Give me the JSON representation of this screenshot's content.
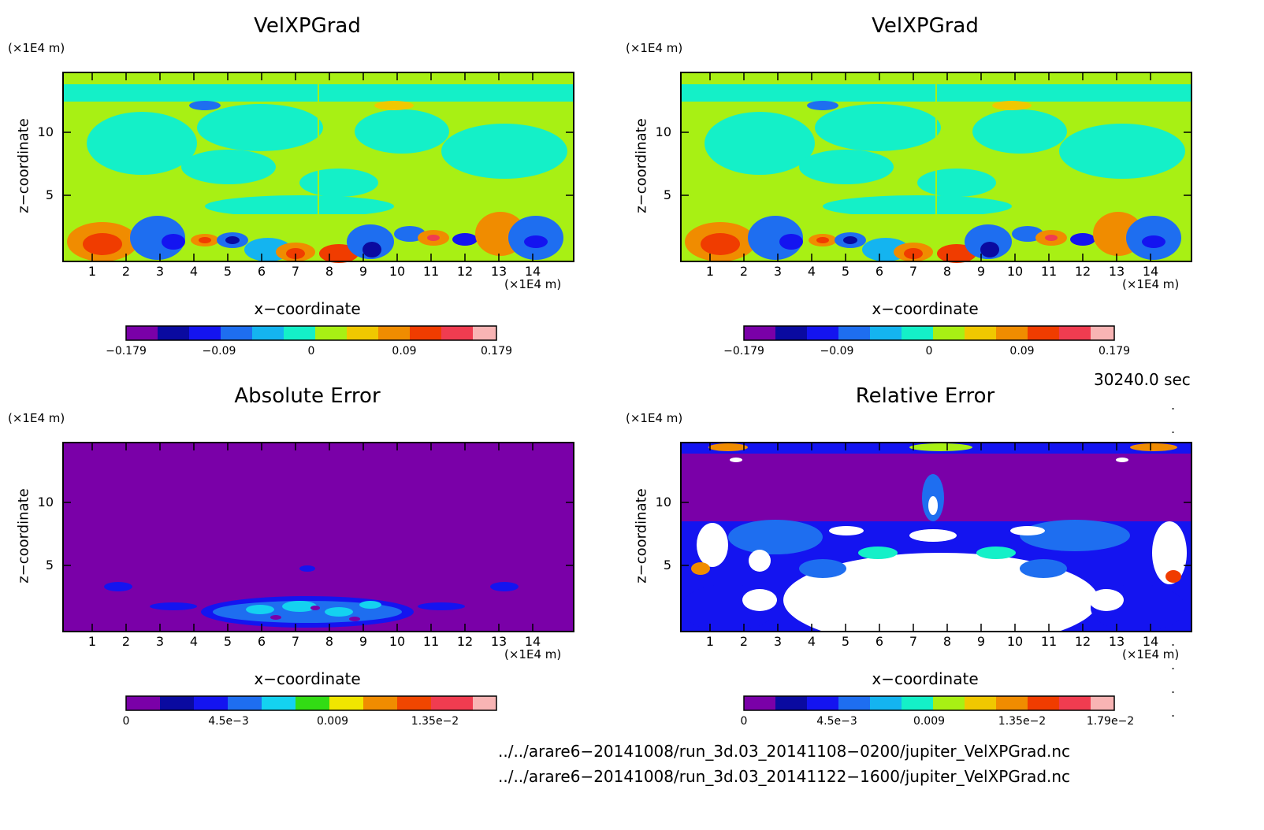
{
  "chart_data": [
    {
      "type": "heatmap",
      "title": "VelXPGrad",
      "xlabel": "x−coordinate",
      "ylabel": "z−coordinate",
      "x_unit": "(×1E4 m)",
      "y_unit": "(×1E4 m)",
      "xticks": [
        "1",
        "2",
        "3",
        "4",
        "5",
        "6",
        "7",
        "8",
        "9",
        "10",
        "11",
        "12",
        "13",
        "14"
      ],
      "yticks": [
        "5",
        "10"
      ],
      "xlim": [
        0,
        15
      ],
      "ylim": [
        0,
        15
      ],
      "colorbar": {
        "labels": [
          "−0.179",
          "−0.09",
          "0",
          "0.09",
          "0.179"
        ],
        "colors": [
          "#7a00a8",
          "#0a0aa0",
          "#1414f0",
          "#1e6ef0",
          "#14b4f0",
          "#14f0c8",
          "#a8f014",
          "#f0c800",
          "#f08c00",
          "#f03c00",
          "#f03c50",
          "#f8b4b4"
        ]
      }
    },
    {
      "type": "heatmap",
      "title": "VelXPGrad",
      "xlabel": "x−coordinate",
      "ylabel": "z−coordinate",
      "x_unit": "(×1E4 m)",
      "y_unit": "(×1E4 m)",
      "xticks": [
        "1",
        "2",
        "3",
        "4",
        "5",
        "6",
        "7",
        "8",
        "9",
        "10",
        "11",
        "12",
        "13",
        "14"
      ],
      "yticks": [
        "5",
        "10"
      ],
      "xlim": [
        0,
        15
      ],
      "ylim": [
        0,
        15
      ],
      "colorbar": {
        "labels": [
          "−0.179",
          "−0.09",
          "0",
          "0.09",
          "0.179"
        ],
        "colors": [
          "#7a00a8",
          "#0a0aa0",
          "#1414f0",
          "#1e6ef0",
          "#14b4f0",
          "#14f0c8",
          "#a8f014",
          "#f0c800",
          "#f08c00",
          "#f03c00",
          "#f03c50",
          "#f8b4b4"
        ]
      }
    },
    {
      "type": "heatmap",
      "title": "Absolute Error",
      "xlabel": "x−coordinate",
      "ylabel": "z−coordinate",
      "x_unit": "(×1E4 m)",
      "y_unit": "(×1E4 m)",
      "xticks": [
        "1",
        "2",
        "3",
        "4",
        "5",
        "6",
        "7",
        "8",
        "9",
        "10",
        "11",
        "12",
        "13",
        "14"
      ],
      "yticks": [
        "5",
        "10"
      ],
      "xlim": [
        0,
        15
      ],
      "ylim": [
        0,
        15
      ],
      "colorbar": {
        "labels": [
          "0",
          "4.5e−3",
          "0.009",
          "1.35e−2"
        ],
        "colors": [
          "#7a00a8",
          "#0a0aa0",
          "#1414f0",
          "#1e6ef0",
          "#14d2f0",
          "#32dc14",
          "#f0e600",
          "#f08c00",
          "#f04600",
          "#f03c50",
          "#f8b4b4"
        ]
      }
    },
    {
      "type": "heatmap",
      "title": "Relative Error",
      "xlabel": "x−coordinate",
      "ylabel": "z−coordinate",
      "x_unit": "(×1E4 m)",
      "y_unit": "(×1E4 m)",
      "xticks": [
        "1",
        "2",
        "3",
        "4",
        "5",
        "6",
        "7",
        "8",
        "9",
        "10",
        "11",
        "12",
        "13",
        "14"
      ],
      "yticks": [
        "5",
        "10"
      ],
      "xlim": [
        0,
        15
      ],
      "ylim": [
        0,
        15
      ],
      "colorbar": {
        "labels": [
          "0",
          "4.5e−3",
          "0.009",
          "1.35e−2",
          "1.79e−2"
        ],
        "colors": [
          "#7a00a8",
          "#0a0aa0",
          "#1414f0",
          "#1e6ef0",
          "#14b4f0",
          "#14f0c8",
          "#a8f014",
          "#f0c800",
          "#f08c00",
          "#f03c00",
          "#f03c50",
          "#f8b4b4"
        ]
      }
    }
  ],
  "time_label": "30240.0 sec",
  "files": [
    "../../arare6−20141008/run_3d.03_20141108−0200/jupiter_VelXPGrad.nc",
    "../../arare6−20141008/run_3d.03_20141122−1600/jupiter_VelXPGrad.nc"
  ]
}
